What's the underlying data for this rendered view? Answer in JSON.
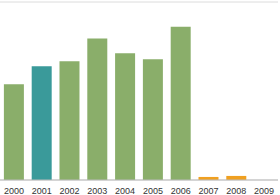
{
  "chart_data": {
    "type": "bar",
    "categories": [
      "2000",
      "2001",
      "2002",
      "2003",
      "2004",
      "2005",
      "2006",
      "2007",
      "2008",
      "2009"
    ],
    "values": [
      3.77,
      4.47,
      4.67,
      5.56,
      4.98,
      4.75,
      6.03,
      0.12,
      0.16,
      null
    ],
    "colors": [
      "#8aae6a",
      "#3a9a9a",
      "#8aae6a",
      "#8aae6a",
      "#8aae6a",
      "#8aae6a",
      "#8aae6a",
      "#f0a020",
      "#f0a020",
      "#f0a020"
    ],
    "ylim": [
      0,
      7
    ],
    "yticks": [
      0,
      1,
      2,
      3,
      4,
      5,
      6,
      7
    ],
    "grid": true,
    "tick_labels": "x"
  }
}
